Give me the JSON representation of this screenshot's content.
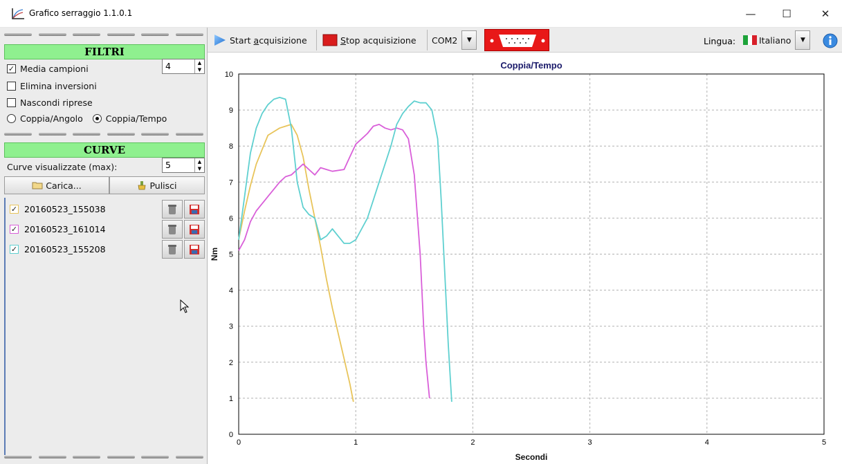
{
  "window": {
    "title": "Grafico serraggio 1.1.0.1",
    "minimize": "—",
    "maximize": "☐",
    "close": "✕"
  },
  "sidebar": {
    "filters": {
      "header": "FILTRI",
      "media_campioni": {
        "label": "Media campioni",
        "checked": true,
        "value": "4"
      },
      "elimina_inversioni": {
        "label": "Elimina inversioni",
        "checked": false
      },
      "nascondi_riprese": {
        "label": "Nascondi riprese",
        "checked": false
      },
      "mode": {
        "options": [
          "Coppia/Angolo",
          "Coppia/Tempo"
        ],
        "selected": "Coppia/Tempo"
      }
    },
    "curves": {
      "header": "CURVE",
      "max_label": "Curve visualizzate (max):",
      "max_value": "5",
      "load_button": "Carica...",
      "clear_button": "Pulisci",
      "items": [
        {
          "name": "20160523_155038",
          "checked": true,
          "color": "#e8c45a"
        },
        {
          "name": "20160523_161014",
          "checked": true,
          "color": "#d95fd9"
        },
        {
          "name": "20160523_155208",
          "checked": true,
          "color": "#5fd0d0"
        }
      ]
    }
  },
  "toolbar": {
    "start": {
      "prefix": "Start ",
      "underlined": "a",
      "suffix": "cquisizione"
    },
    "stop": {
      "prefix": "",
      "underlined": "S",
      "suffix": "top acquisizione"
    },
    "port": "COM2",
    "language_label": "Lingua:",
    "language": "Italiano"
  },
  "chart_data": {
    "type": "line",
    "title": "Coppia/Tempo",
    "xlabel": "Secondi",
    "ylabel": "Nm",
    "xlim": [
      0,
      5
    ],
    "ylim": [
      0,
      10
    ],
    "xticks": [
      "0",
      "1",
      "2",
      "3",
      "4",
      "5"
    ],
    "yticks": [
      "0",
      "1",
      "2",
      "3",
      "4",
      "5",
      "6",
      "7",
      "8",
      "9",
      "10"
    ],
    "grid": true,
    "series": [
      {
        "name": "20160523_155038",
        "color": "#e8c45a",
        "points": [
          [
            0,
            5.4
          ],
          [
            0.05,
            6.2
          ],
          [
            0.1,
            6.9
          ],
          [
            0.15,
            7.5
          ],
          [
            0.2,
            7.9
          ],
          [
            0.25,
            8.3
          ],
          [
            0.3,
            8.4
          ],
          [
            0.35,
            8.5
          ],
          [
            0.4,
            8.55
          ],
          [
            0.45,
            8.6
          ],
          [
            0.5,
            8.3
          ],
          [
            0.55,
            7.7
          ],
          [
            0.6,
            6.8
          ],
          [
            0.65,
            6.0
          ],
          [
            0.7,
            5.2
          ],
          [
            0.75,
            4.3
          ],
          [
            0.8,
            3.5
          ],
          [
            0.85,
            2.8
          ],
          [
            0.9,
            2.1
          ],
          [
            0.95,
            1.4
          ],
          [
            0.98,
            0.9
          ]
        ]
      },
      {
        "name": "20160523_161014",
        "color": "#d95fd9",
        "points": [
          [
            0,
            5.1
          ],
          [
            0.05,
            5.4
          ],
          [
            0.1,
            5.9
          ],
          [
            0.15,
            6.2
          ],
          [
            0.2,
            6.4
          ],
          [
            0.25,
            6.6
          ],
          [
            0.3,
            6.8
          ],
          [
            0.35,
            7.0
          ],
          [
            0.4,
            7.15
          ],
          [
            0.45,
            7.2
          ],
          [
            0.5,
            7.35
          ],
          [
            0.55,
            7.5
          ],
          [
            0.6,
            7.35
          ],
          [
            0.65,
            7.2
          ],
          [
            0.7,
            7.4
          ],
          [
            0.75,
            7.35
          ],
          [
            0.8,
            7.3
          ],
          [
            0.9,
            7.35
          ],
          [
            0.95,
            7.7
          ],
          [
            1.0,
            8.05
          ],
          [
            1.05,
            8.2
          ],
          [
            1.1,
            8.35
          ],
          [
            1.15,
            8.55
          ],
          [
            1.2,
            8.6
          ],
          [
            1.25,
            8.5
          ],
          [
            1.3,
            8.45
          ],
          [
            1.35,
            8.5
          ],
          [
            1.4,
            8.45
          ],
          [
            1.45,
            8.2
          ],
          [
            1.5,
            7.2
          ],
          [
            1.55,
            5.0
          ],
          [
            1.58,
            3.0
          ],
          [
            1.6,
            2.0
          ],
          [
            1.63,
            1.0
          ]
        ]
      },
      {
        "name": "20160523_155208",
        "color": "#5fd0d0",
        "points": [
          [
            0,
            5.4
          ],
          [
            0.05,
            6.6
          ],
          [
            0.1,
            7.8
          ],
          [
            0.15,
            8.5
          ],
          [
            0.2,
            8.9
          ],
          [
            0.25,
            9.15
          ],
          [
            0.3,
            9.3
          ],
          [
            0.35,
            9.35
          ],
          [
            0.4,
            9.3
          ],
          [
            0.45,
            8.5
          ],
          [
            0.5,
            7.0
          ],
          [
            0.55,
            6.3
          ],
          [
            0.6,
            6.1
          ],
          [
            0.65,
            6.0
          ],
          [
            0.7,
            5.4
          ],
          [
            0.75,
            5.5
          ],
          [
            0.8,
            5.7
          ],
          [
            0.85,
            5.5
          ],
          [
            0.9,
            5.3
          ],
          [
            0.95,
            5.3
          ],
          [
            1.0,
            5.4
          ],
          [
            1.05,
            5.7
          ],
          [
            1.1,
            6.0
          ],
          [
            1.15,
            6.5
          ],
          [
            1.2,
            7.0
          ],
          [
            1.25,
            7.5
          ],
          [
            1.3,
            8.0
          ],
          [
            1.35,
            8.6
          ],
          [
            1.4,
            8.9
          ],
          [
            1.45,
            9.1
          ],
          [
            1.5,
            9.25
          ],
          [
            1.55,
            9.2
          ],
          [
            1.6,
            9.2
          ],
          [
            1.65,
            9.0
          ],
          [
            1.7,
            8.2
          ],
          [
            1.73,
            6.5
          ],
          [
            1.76,
            4.5
          ],
          [
            1.79,
            2.5
          ],
          [
            1.82,
            0.9
          ]
        ]
      }
    ]
  }
}
